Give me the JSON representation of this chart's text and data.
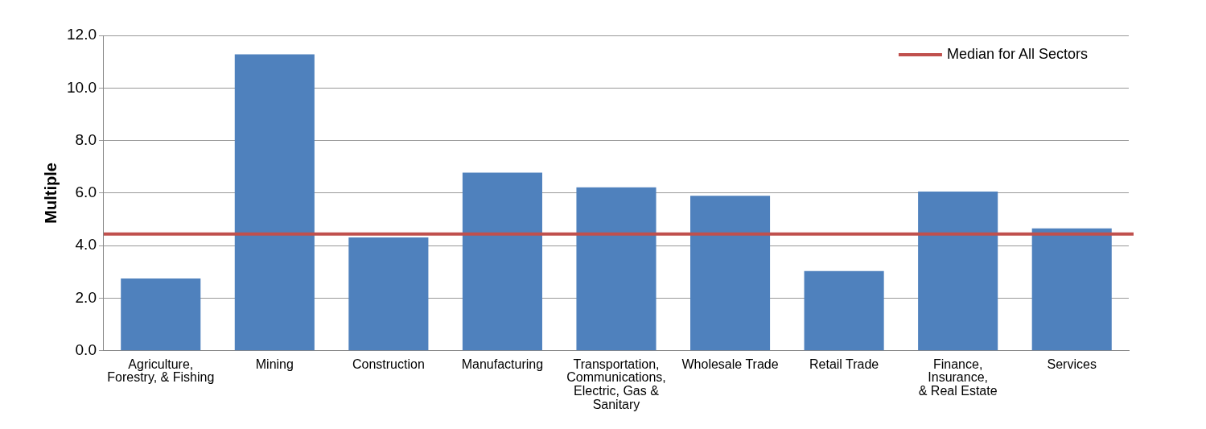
{
  "chart_data": {
    "type": "bar",
    "ylabel": "Multiple",
    "categories": [
      "Agriculture,\nForestry, & Fishing",
      "Mining",
      "Construction",
      "Manufacturing",
      "Transportation,\nCommunications,\nElectric, Gas &\nSanitary",
      "Wholesale Trade",
      "Retail Trade",
      "Finance,\nInsurance,\n& Real Estate",
      "Services"
    ],
    "values": [
      2.75,
      11.28,
      4.31,
      6.78,
      6.22,
      5.9,
      3.03,
      6.06,
      4.66
    ],
    "color": "#4f81bd",
    "ylim": [
      0,
      12
    ],
    "yticks": [
      {
        "value": 0,
        "label": "0.0"
      },
      {
        "value": 2,
        "label": "2.0"
      },
      {
        "value": 4,
        "label": "4.0"
      },
      {
        "value": 6,
        "label": "6.0"
      },
      {
        "value": 8,
        "label": "8.0"
      },
      {
        "value": 10,
        "label": "10.0"
      },
      {
        "value": 12,
        "label": "12.0"
      }
    ],
    "ref_lines": [
      {
        "axis": "y",
        "value": 4.44,
        "label": "Median for All Sectors",
        "color": "#c0504d"
      }
    ],
    "grid": "y",
    "legend": "top right"
  }
}
